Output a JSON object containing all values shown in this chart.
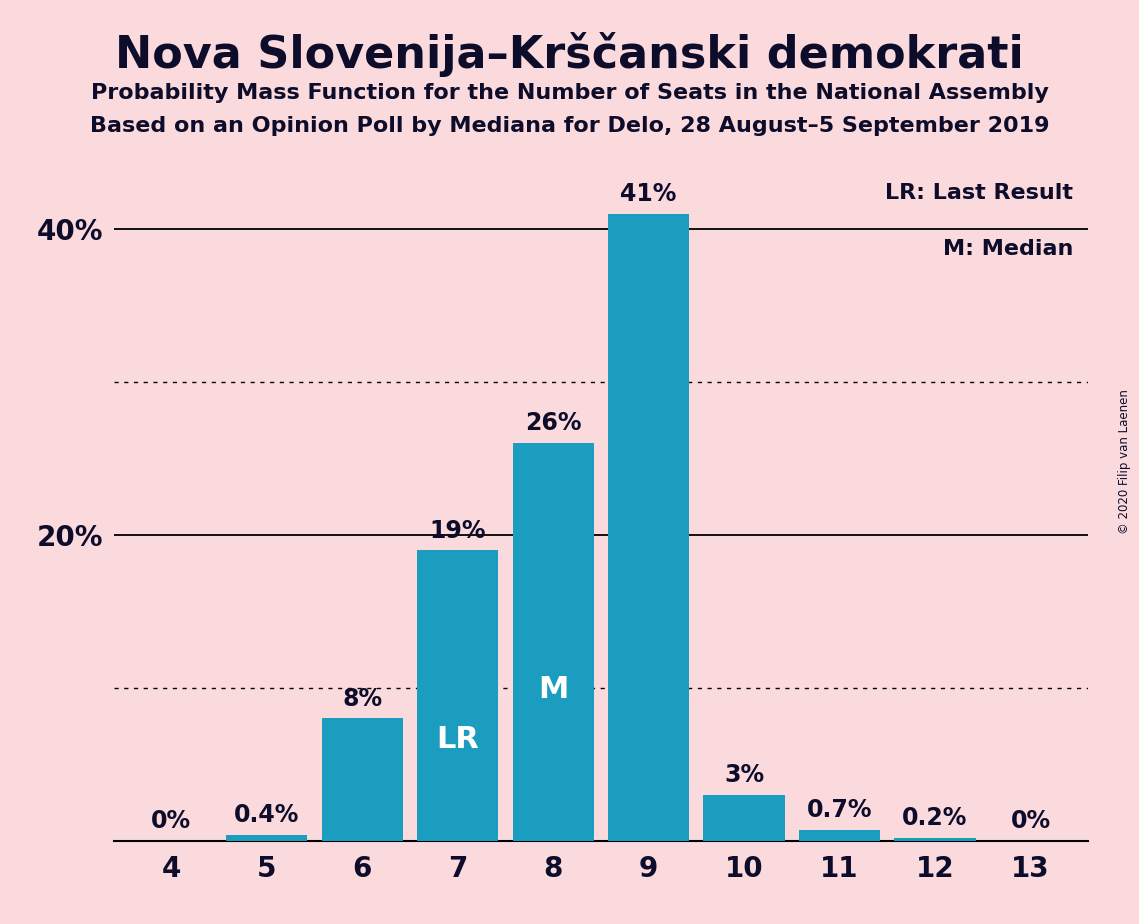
{
  "title": "Nova Slovenija–Krščanski demokrati",
  "subtitle1": "Probability Mass Function for the Number of Seats in the National Assembly",
  "subtitle2": "Based on an Opinion Poll by Mediana for Delo, 28 August–5 September 2019",
  "copyright": "© 2020 Filip van Laenen",
  "categories": [
    4,
    5,
    6,
    7,
    8,
    9,
    10,
    11,
    12,
    13
  ],
  "values": [
    0.0,
    0.4,
    8.0,
    19.0,
    26.0,
    41.0,
    3.0,
    0.7,
    0.2,
    0.0
  ],
  "bar_color": "#1b9dc0",
  "background_color": "#fadadd",
  "label_color": "#0d0d2b",
  "bar_label_color_outside": "#0d0d2b",
  "bar_label_color_inside": "white",
  "lr_seat": 7,
  "median_seat": 8,
  "ylim": [
    0,
    45
  ],
  "yticks": [
    0,
    20,
    40
  ],
  "ytick_labels": [
    "",
    "20%",
    "40%"
  ],
  "dotted_lines": [
    10,
    30
  ],
  "solid_lines": [
    20,
    40
  ],
  "legend_lr": "LR: Last Result",
  "legend_m": "M: Median",
  "value_labels": [
    "0%",
    "0.4%",
    "8%",
    "19%",
    "26%",
    "41%",
    "3%",
    "0.7%",
    "0.2%",
    "0%"
  ],
  "inside_label_threshold": 15,
  "label_fontsize": 17,
  "lr_m_fontsize": 22,
  "title_fontsize": 32,
  "subtitle_fontsize": 16
}
